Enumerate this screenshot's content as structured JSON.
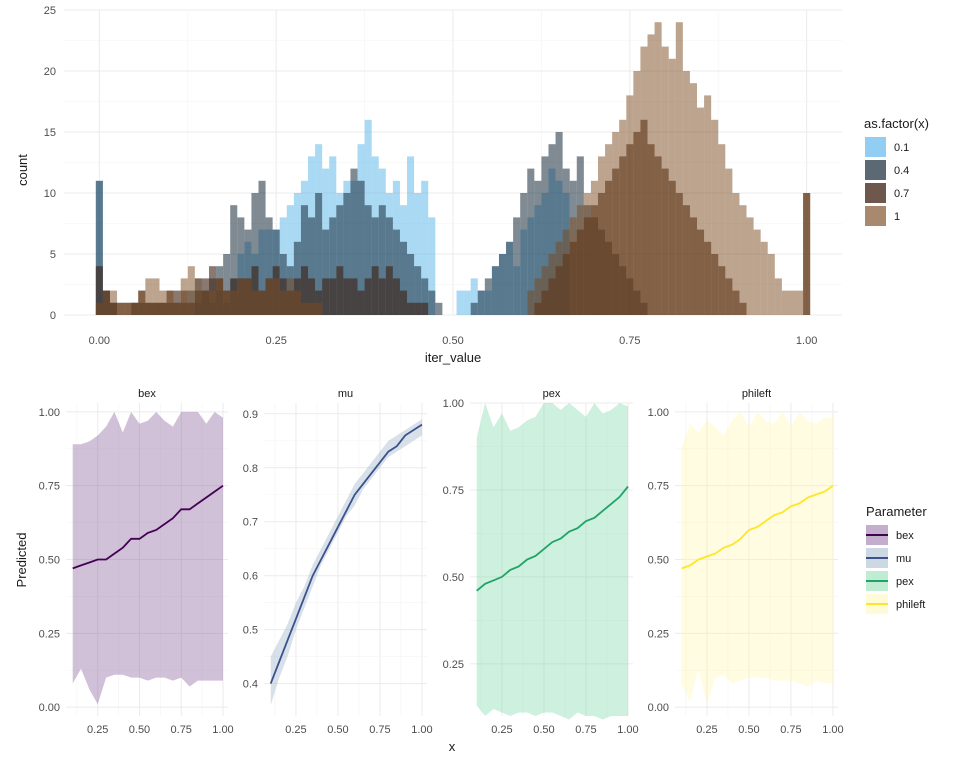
{
  "chart_data": [
    {
      "type": "histogram",
      "xlabel": "iter_value",
      "ylabel": "count",
      "xlim": [
        -0.05,
        1.05
      ],
      "ylim": [
        0,
        25
      ],
      "x_ticks": [
        "0.00",
        "0.25",
        "0.50",
        "0.75",
        "1.00"
      ],
      "y_ticks": [
        "0",
        "5",
        "10",
        "15",
        "20",
        "25"
      ],
      "bin_width": 0.01,
      "grid": true,
      "legend_position": "right",
      "legend_title": "as.factor(x)",
      "series": [
        {
          "name": "0.1",
          "color": "#56B4E9",
          "alpha": 0.5,
          "bin_start": 0.0,
          "counts": [
            11,
            2,
            1,
            0,
            0,
            0,
            0,
            0,
            0,
            0,
            0,
            0,
            0,
            0,
            1,
            2,
            1,
            2,
            1,
            3,
            5,
            6,
            5,
            7,
            7,
            7,
            8,
            9,
            10,
            11,
            13,
            14,
            12,
            13,
            10,
            11,
            11,
            14,
            16,
            13,
            12,
            10,
            11,
            9,
            13,
            10,
            11,
            8,
            0,
            0,
            0,
            0,
            0,
            0,
            0,
            0,
            0,
            0,
            0,
            0,
            0,
            0,
            0,
            0,
            0,
            0,
            0,
            0,
            0,
            0,
            0,
            0,
            0,
            0,
            0,
            0,
            0,
            0,
            0,
            0,
            0,
            0,
            0,
            0,
            0,
            0,
            0,
            0,
            0,
            0,
            0,
            0,
            0,
            0,
            0,
            0,
            0,
            0,
            0,
            0,
            0
          ]
        },
        {
          "name": "0.1",
          "color": "#56B4E9",
          "alpha": 0.5,
          "bin_start": 0.51,
          "counts": [
            2,
            2,
            3,
            2,
            2,
            4,
            5,
            6,
            4,
            7,
            8,
            9,
            10,
            12,
            11,
            10
          ]
        }
      ],
      "overlay_series": [
        {
          "name": "0.4",
          "color": "#15293B",
          "alpha": 0.55,
          "bin_start": 0.0,
          "counts": [
            11,
            2,
            1,
            0,
            0,
            1,
            1,
            1,
            1,
            1,
            1,
            1,
            1,
            2,
            3,
            2,
            3,
            4,
            5,
            9,
            8,
            7,
            10,
            11,
            8,
            7,
            5,
            4,
            6,
            9,
            8,
            10,
            7,
            8,
            9,
            10,
            12,
            11,
            9,
            8,
            9,
            8,
            7,
            6,
            5,
            4,
            3,
            2,
            1,
            0,
            0,
            0,
            0,
            0,
            0,
            0,
            0,
            0,
            0,
            0,
            0,
            0,
            0,
            0,
            0,
            0,
            0,
            0,
            0,
            0,
            0,
            0,
            0,
            0,
            0,
            0,
            0,
            0,
            0,
            0,
            0,
            0,
            0,
            0,
            0,
            0,
            0,
            0,
            0,
            0,
            0,
            0,
            0,
            0,
            0,
            0,
            0,
            0,
            0,
            0,
            0
          ]
        },
        {
          "name": "0.4",
          "color": "#15293B",
          "alpha": 0.55,
          "bin_start": 0.53,
          "counts": [
            1,
            2,
            3,
            4,
            5,
            6,
            8,
            10,
            12,
            11,
            13,
            14,
            15,
            12,
            11,
            13,
            9,
            8,
            7,
            6,
            5,
            4,
            3,
            2,
            1
          ]
        }
      ],
      "series_07": {
        "name": "0.7",
        "color": "#3E1F10",
        "alpha": 0.6,
        "bin_start": 0.0,
        "counts": [
          4,
          2,
          1,
          1,
          1,
          1,
          2,
          1,
          1,
          1,
          2,
          2,
          2,
          1,
          2,
          3,
          4,
          3,
          2,
          3,
          3,
          3,
          4,
          2,
          3,
          4,
          3,
          2,
          3,
          4,
          3,
          2,
          3,
          3,
          4,
          3,
          3,
          2,
          3,
          4,
          3,
          4,
          3,
          2,
          1,
          1,
          1,
          0,
          0,
          0,
          0,
          0,
          0,
          0,
          0,
          0,
          0,
          0,
          0,
          0,
          0,
          0,
          1,
          2,
          3,
          4,
          5,
          6,
          7,
          8,
          9,
          10,
          11,
          12,
          13,
          14,
          15,
          16,
          14,
          13,
          12,
          11,
          10,
          9,
          8,
          7,
          6,
          5,
          4,
          3,
          2,
          1,
          0,
          0,
          0,
          0,
          0,
          0,
          0,
          0,
          10
        ]
      },
      "series_1": {
        "name": "1",
        "color": "#7B4A1E",
        "alpha": 0.5,
        "bin_start": 0.0,
        "counts": [
          1,
          2,
          2,
          1,
          1,
          1,
          2,
          3,
          3,
          2,
          2,
          1,
          3,
          4,
          3,
          2,
          2,
          3,
          2,
          2,
          3,
          3,
          2,
          2,
          3,
          3,
          2,
          3,
          2,
          1,
          1,
          1,
          0,
          0,
          0,
          0,
          0,
          0,
          0,
          0,
          0,
          0,
          0,
          0,
          0,
          0,
          0,
          0,
          0,
          0,
          0,
          0,
          0,
          0,
          0,
          0,
          0,
          0,
          0,
          0,
          0,
          2,
          3,
          4,
          5,
          6,
          7,
          8,
          9,
          10,
          11,
          13,
          14,
          15,
          16,
          18,
          20,
          22,
          23,
          24,
          22,
          21,
          24,
          20,
          19,
          17,
          18,
          16,
          14,
          12,
          10,
          9,
          8,
          7,
          6,
          5,
          3,
          2,
          2,
          2,
          10
        ]
      }
    },
    {
      "type": "line",
      "facets": [
        "bex",
        "mu",
        "pex",
        "phileft"
      ],
      "xlabel": "x",
      "ylabel": "Predicted",
      "x_ticks": [
        "0.25",
        "0.50",
        "0.75",
        "1.00"
      ],
      "legend_title": "Parameter",
      "legend_position": "right",
      "series": [
        {
          "name": "bex",
          "color": "#440154",
          "fill": "#7A4E8E",
          "y_ticks": [
            "0.00",
            "0.25",
            "0.50",
            "0.75",
            "1.00"
          ],
          "ylim": [
            -0.03,
            1.03
          ],
          "x": [
            0.1,
            0.15,
            0.2,
            0.25,
            0.3,
            0.35,
            0.4,
            0.45,
            0.5,
            0.55,
            0.6,
            0.65,
            0.7,
            0.75,
            0.8,
            0.85,
            0.9,
            0.95,
            1.0
          ],
          "y": [
            0.47,
            0.48,
            0.49,
            0.5,
            0.5,
            0.52,
            0.54,
            0.57,
            0.57,
            0.59,
            0.6,
            0.62,
            0.64,
            0.67,
            0.67,
            0.69,
            0.71,
            0.73,
            0.75
          ],
          "lower": [
            0.08,
            0.13,
            0.06,
            0.01,
            0.1,
            0.11,
            0.11,
            0.1,
            0.1,
            0.09,
            0.1,
            0.1,
            0.09,
            0.1,
            0.07,
            0.09,
            0.09,
            0.09,
            0.09
          ],
          "upper": [
            0.89,
            0.89,
            0.9,
            0.92,
            0.95,
            1.0,
            0.93,
            1.0,
            0.96,
            0.97,
            1.0,
            0.97,
            0.95,
            1.0,
            1.0,
            1.0,
            0.96,
            1.0,
            0.98
          ]
        },
        {
          "name": "mu",
          "color": "#3B528B",
          "fill": "#8FA8C3",
          "y_ticks": [
            "0.4",
            "0.5",
            "0.6",
            "0.7",
            "0.8",
            "0.9"
          ],
          "ylim": [
            0.34,
            0.92
          ],
          "x": [
            0.1,
            0.15,
            0.2,
            0.25,
            0.3,
            0.35,
            0.4,
            0.45,
            0.5,
            0.55,
            0.6,
            0.65,
            0.7,
            0.75,
            0.8,
            0.85,
            0.9,
            0.95,
            1.0
          ],
          "y": [
            0.4,
            0.44,
            0.48,
            0.52,
            0.56,
            0.6,
            0.63,
            0.66,
            0.69,
            0.72,
            0.75,
            0.77,
            0.79,
            0.81,
            0.83,
            0.84,
            0.86,
            0.87,
            0.88
          ],
          "lower": [
            0.36,
            0.41,
            0.45,
            0.5,
            0.54,
            0.58,
            0.62,
            0.65,
            0.68,
            0.71,
            0.73,
            0.76,
            0.78,
            0.8,
            0.82,
            0.83,
            0.84,
            0.85,
            0.86
          ],
          "upper": [
            0.45,
            0.48,
            0.51,
            0.55,
            0.58,
            0.62,
            0.65,
            0.68,
            0.71,
            0.74,
            0.77,
            0.79,
            0.81,
            0.83,
            0.85,
            0.86,
            0.87,
            0.88,
            0.89
          ]
        },
        {
          "name": "pex",
          "color": "#21A367",
          "fill": "#74D4A0",
          "y_ticks": [
            "0.25",
            "0.50",
            "0.75",
            "1.00"
          ],
          "ylim": [
            0.1,
            1.0
          ],
          "x": [
            0.1,
            0.15,
            0.2,
            0.25,
            0.3,
            0.35,
            0.4,
            0.45,
            0.5,
            0.55,
            0.6,
            0.65,
            0.7,
            0.75,
            0.8,
            0.85,
            0.9,
            0.95,
            1.0
          ],
          "y": [
            0.46,
            0.48,
            0.49,
            0.5,
            0.52,
            0.53,
            0.55,
            0.56,
            0.58,
            0.6,
            0.61,
            0.63,
            0.64,
            0.66,
            0.67,
            0.69,
            0.71,
            0.73,
            0.76
          ],
          "lower": [
            0.13,
            0.1,
            0.12,
            0.11,
            0.1,
            0.11,
            0.11,
            0.1,
            0.11,
            0.11,
            0.1,
            0.09,
            0.11,
            0.1,
            0.1,
            0.09,
            0.1,
            0.1,
            0.1
          ],
          "upper": [
            0.9,
            1.0,
            0.93,
            0.97,
            0.92,
            0.93,
            0.95,
            0.96,
            1.0,
            1.0,
            0.98,
            1.0,
            0.98,
            0.96,
            1.0,
            0.97,
            0.98,
            1.0,
            0.99
          ]
        },
        {
          "name": "phileft",
          "color": "#FDE725",
          "fill": "#FFF5A8",
          "y_ticks": [
            "0.00",
            "0.25",
            "0.50",
            "0.75",
            "1.00"
          ],
          "ylim": [
            -0.03,
            1.03
          ],
          "x": [
            0.1,
            0.15,
            0.2,
            0.25,
            0.3,
            0.35,
            0.4,
            0.45,
            0.5,
            0.55,
            0.6,
            0.65,
            0.7,
            0.75,
            0.8,
            0.85,
            0.9,
            0.95,
            1.0
          ],
          "y": [
            0.47,
            0.48,
            0.5,
            0.51,
            0.52,
            0.54,
            0.55,
            0.57,
            0.6,
            0.61,
            0.63,
            0.65,
            0.66,
            0.68,
            0.69,
            0.71,
            0.72,
            0.73,
            0.75
          ],
          "lower": [
            0.08,
            0.02,
            0.13,
            0.01,
            0.1,
            0.11,
            0.08,
            0.09,
            0.1,
            0.1,
            0.1,
            0.09,
            0.09,
            0.09,
            0.08,
            0.07,
            0.09,
            0.08,
            0.08
          ],
          "upper": [
            0.88,
            0.96,
            0.93,
            0.97,
            0.95,
            0.92,
            0.97,
            1.0,
            0.95,
            1.0,
            0.97,
            0.96,
            1.0,
            0.95,
            1.0,
            0.97,
            0.96,
            0.98,
            0.98
          ]
        }
      ]
    }
  ]
}
